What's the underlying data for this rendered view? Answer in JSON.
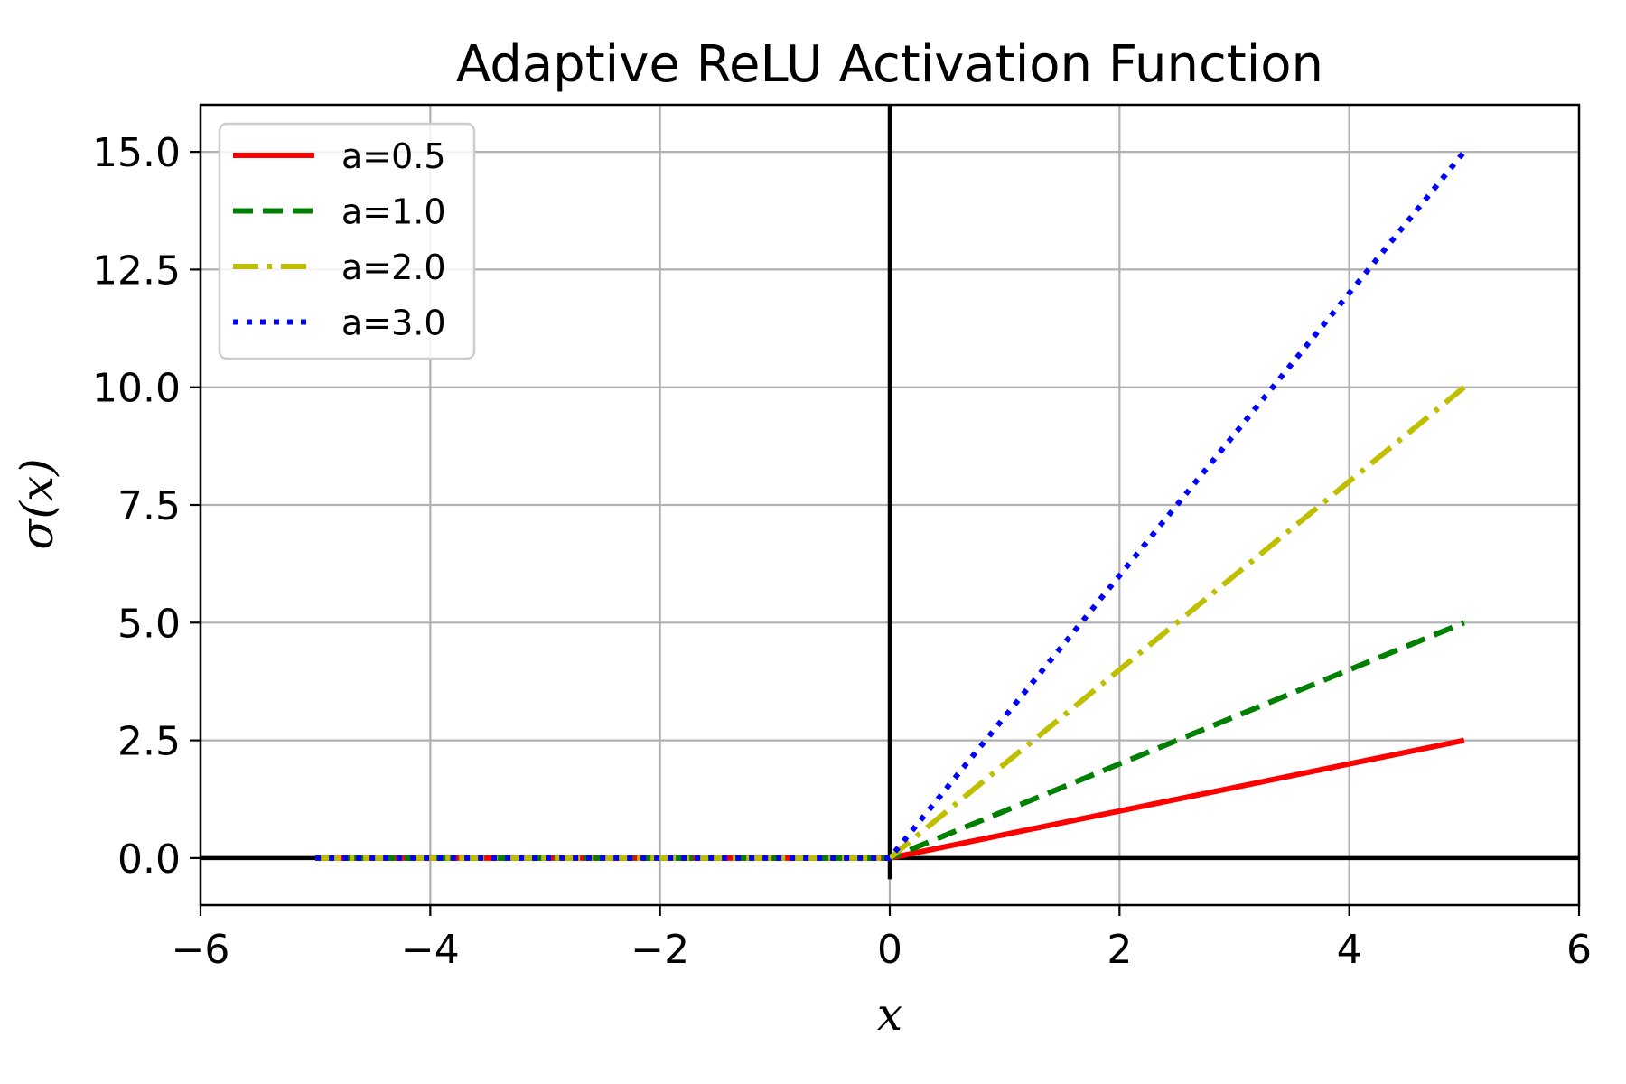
{
  "chart_data": {
    "type": "line",
    "title": "Adaptive ReLU Activation Function",
    "xlabel": "x",
    "ylabel": "σ(x)",
    "xlim": [
      -6,
      6
    ],
    "ylim": [
      -1,
      16
    ],
    "xticks": [
      -6,
      -4,
      -2,
      0,
      2,
      4,
      6
    ],
    "xtick_labels": [
      "−6",
      "−4",
      "−2",
      "0",
      "2",
      "4",
      "6"
    ],
    "yticks": [
      0,
      2.5,
      5,
      7.5,
      10,
      12.5,
      15
    ],
    "ytick_labels": [
      "0.0",
      "2.5",
      "5.0",
      "7.5",
      "10.0",
      "12.5",
      "15.0"
    ],
    "grid": true,
    "legend_position": "top-left",
    "reference_lines": {
      "horizontal_y": 0,
      "vertical_x": 0,
      "color": "#000000"
    },
    "series": [
      {
        "name": "a=0.5",
        "color": "#ff0000",
        "style": "solid",
        "x": [
          -5,
          0,
          5
        ],
        "y": [
          0,
          0,
          2.5
        ]
      },
      {
        "name": "a=1.0",
        "color": "#008000",
        "style": "dashed",
        "x": [
          -5,
          0,
          5
        ],
        "y": [
          0,
          0,
          5
        ]
      },
      {
        "name": "a=2.0",
        "color": "#bfbf00",
        "style": "dashdot",
        "x": [
          -5,
          0,
          5
        ],
        "y": [
          0,
          0,
          10
        ]
      },
      {
        "name": "a=3.0",
        "color": "#0000ff",
        "style": "dotted",
        "x": [
          -5,
          0,
          5
        ],
        "y": [
          0,
          0,
          15
        ]
      }
    ]
  }
}
